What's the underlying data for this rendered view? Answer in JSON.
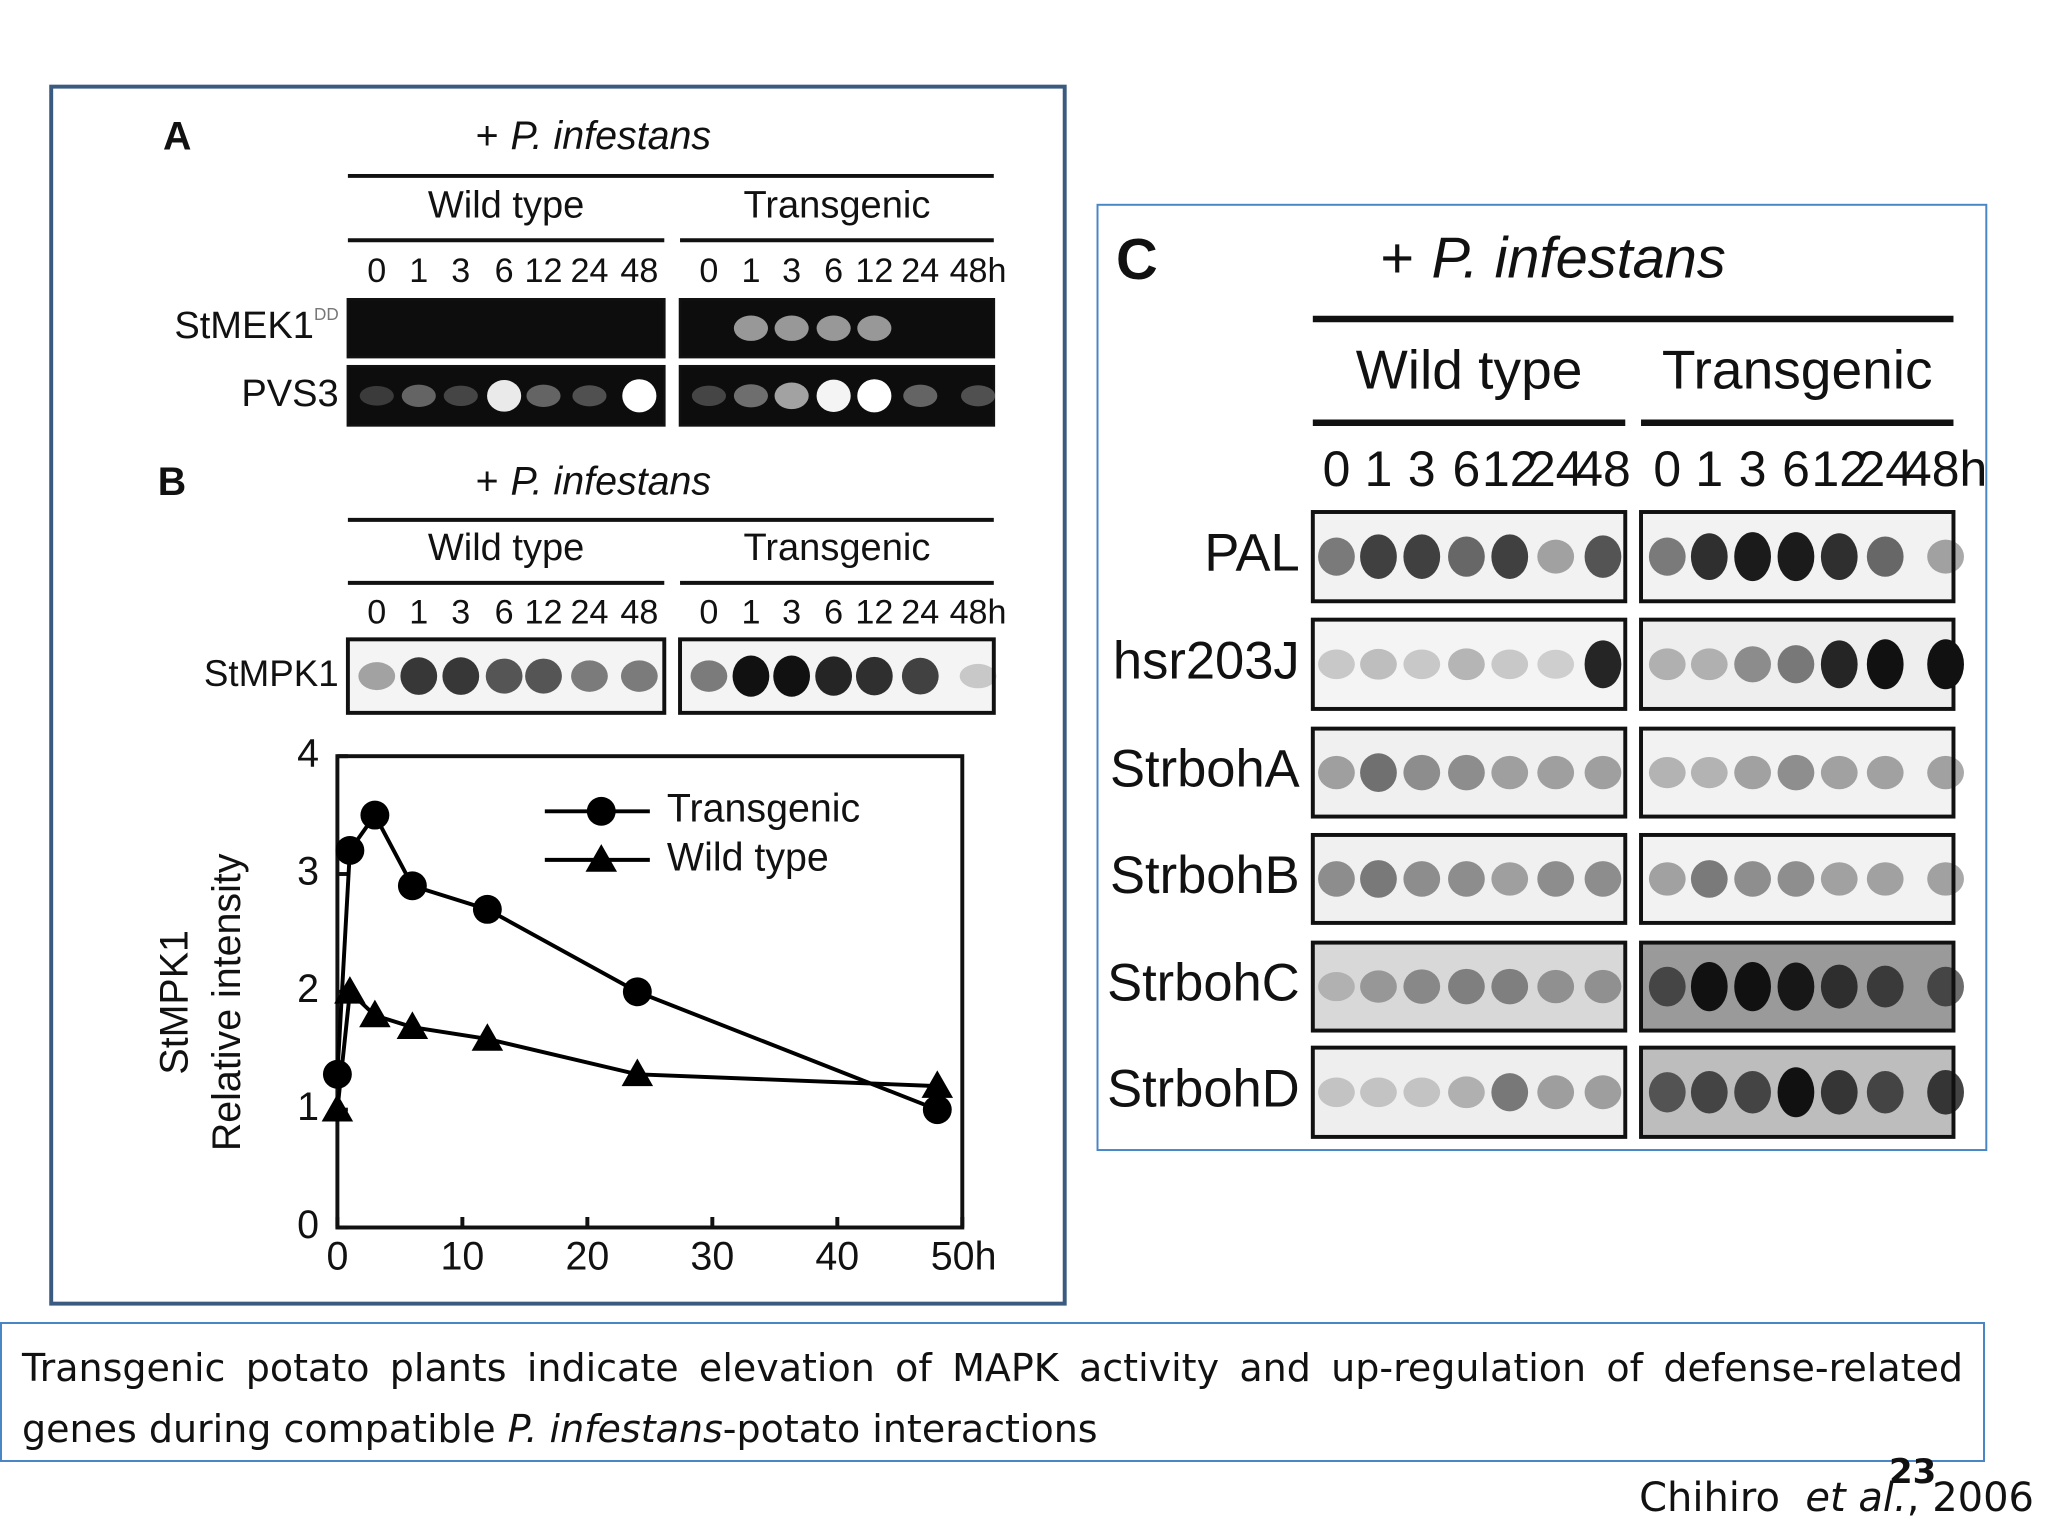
{
  "panel_a": {
    "label": "A",
    "heading": {
      "sign": "+",
      "species": "P. infestans"
    },
    "groups": [
      {
        "name": "Wild type",
        "lanes": [
          "0",
          "1",
          "3",
          "6",
          "12",
          "24",
          "48"
        ]
      },
      {
        "name": "Transgenic",
        "lanes": [
          "0",
          "1",
          "3",
          "6",
          "12",
          "24",
          "48h"
        ]
      }
    ],
    "rows": [
      {
        "name": "StMEK1",
        "sup": "DD"
      },
      {
        "name": "PVS3"
      }
    ]
  },
  "panel_b": {
    "label": "B",
    "heading": {
      "sign": "+",
      "species": "P. infestans"
    },
    "groups": [
      {
        "name": "Wild type",
        "lanes": [
          "0",
          "1",
          "3",
          "6",
          "12",
          "24",
          "48"
        ]
      },
      {
        "name": "Transgenic",
        "lanes": [
          "0",
          "1",
          "3",
          "6",
          "12",
          "24",
          "48h"
        ]
      }
    ],
    "rows": [
      {
        "name": "StMPK1"
      }
    ]
  },
  "chart_data": {
    "type": "line",
    "x": [
      0,
      1,
      3,
      6,
      12,
      24,
      48
    ],
    "series": [
      {
        "name": "Transgenic",
        "marker": "circle",
        "color": "#000000",
        "values": [
          1.3,
          3.2,
          3.5,
          2.9,
          2.7,
          2.0,
          1.0
        ]
      },
      {
        "name": "Wild type",
        "marker": "triangle",
        "color": "#000000",
        "values": [
          1.0,
          2.0,
          1.8,
          1.7,
          1.6,
          1.3,
          1.2
        ]
      }
    ],
    "xlim": [
      0,
      50
    ],
    "xticks": [
      0,
      10,
      20,
      30,
      40,
      {
        "value": 50,
        "label": "50h"
      }
    ],
    "ylim": [
      0,
      4
    ],
    "yticks": [
      0,
      1,
      2,
      3,
      4
    ],
    "ylabel": [
      "StMPK1",
      "Relative intensity"
    ],
    "legend": "top-right"
  },
  "panel_c": {
    "label": "C",
    "heading": {
      "sign": "+",
      "species": "P. infestans"
    },
    "groups": [
      {
        "name": "Wild type",
        "lanes": [
          "0",
          "1",
          "3",
          "6",
          "12",
          "24",
          "48"
        ]
      },
      {
        "name": "Transgenic",
        "lanes": [
          "0",
          "1",
          "3",
          "6",
          "12",
          "24",
          "48h"
        ]
      }
    ],
    "rows": [
      {
        "name": "PAL"
      },
      {
        "name": "hsr203J"
      },
      {
        "name": "StrbohA"
      },
      {
        "name": "StrbohB"
      },
      {
        "name": "StrbohC"
      },
      {
        "name": "StrbohD"
      }
    ]
  },
  "caption": {
    "before": "Transgenic potato plants indicate elevation of MAPK activity and up-regulation of defense-related genes during compatible ",
    "italic": "P. infestans",
    "after": "-potato interactions"
  },
  "citation": {
    "author": "Chihiro",
    "etal": "et al.",
    "year": ", 2006"
  },
  "page_number": "23"
}
